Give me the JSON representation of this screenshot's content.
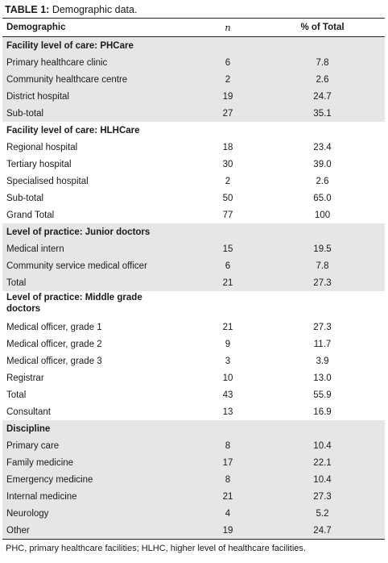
{
  "caption": {
    "label": "TABLE 1:",
    "text": "Demographic data."
  },
  "headers": {
    "demographic": "Demographic",
    "n": "n",
    "pct": "% of Total"
  },
  "sections": [
    {
      "title": "Facility level of care: PHCare",
      "shaded": true,
      "rows": [
        {
          "label": "Primary healthcare clinic",
          "n": "6",
          "pct": "7.8"
        },
        {
          "label": "Community healthcare centre",
          "n": "2",
          "pct": "2.6"
        },
        {
          "label": "District hospital",
          "n": "19",
          "pct": "24.7"
        },
        {
          "label": "Sub-total",
          "n": "27",
          "pct": "35.1"
        }
      ]
    },
    {
      "title": "Facility level of care: HLHCare",
      "shaded": false,
      "rows": [
        {
          "label": "Regional hospital",
          "n": "18",
          "pct": "23.4"
        },
        {
          "label": "Tertiary hospital",
          "n": "30",
          "pct": "39.0"
        },
        {
          "label": "Specialised hospital",
          "n": "2",
          "pct": "2.6"
        },
        {
          "label": "Sub-total",
          "n": "50",
          "pct": "65.0"
        },
        {
          "label": "Grand Total",
          "n": "77",
          "pct": "100"
        }
      ]
    },
    {
      "title": "Level of practice: Junior doctors",
      "shaded": true,
      "rows": [
        {
          "label": "Medical intern",
          "n": "15",
          "pct": "19.5"
        },
        {
          "label": "Community service medical officer",
          "n": "6",
          "pct": "7.8"
        },
        {
          "label": "Total",
          "n": "21",
          "pct": "27.3"
        }
      ]
    },
    {
      "title": "Level of practice: Middle grade doctors",
      "shaded": false,
      "tall": true,
      "rows": [
        {
          "label": "Medical officer, grade 1",
          "n": "21",
          "pct": "27.3"
        },
        {
          "label": "Medical officer, grade 2",
          "n": "9",
          "pct": "11.7"
        },
        {
          "label": "Medical officer, grade 3",
          "n": "3",
          "pct": "3.9"
        },
        {
          "label": "Registrar",
          "n": "10",
          "pct": "13.0"
        },
        {
          "label": "Total",
          "n": "43",
          "pct": "55.9"
        },
        {
          "label": "Consultant",
          "n": "13",
          "pct": "16.9"
        }
      ]
    },
    {
      "title": "Discipline",
      "shaded": true,
      "rows": [
        {
          "label": "Primary care",
          "n": "8",
          "pct": "10.4"
        },
        {
          "label": "Family medicine",
          "n": "17",
          "pct": "22.1"
        },
        {
          "label": "Emergency medicine",
          "n": "8",
          "pct": "10.4"
        },
        {
          "label": "Internal medicine",
          "n": "21",
          "pct": "27.3"
        },
        {
          "label": "Neurology",
          "n": "4",
          "pct": "5.2"
        },
        {
          "label": "Other",
          "n": "19",
          "pct": "24.7"
        }
      ]
    }
  ],
  "footnote": "PHC, primary healthcare facilities; HLHC, higher level of healthcare facilities.",
  "colors": {
    "shade": "#e6e6e6",
    "rule": "#222222"
  }
}
